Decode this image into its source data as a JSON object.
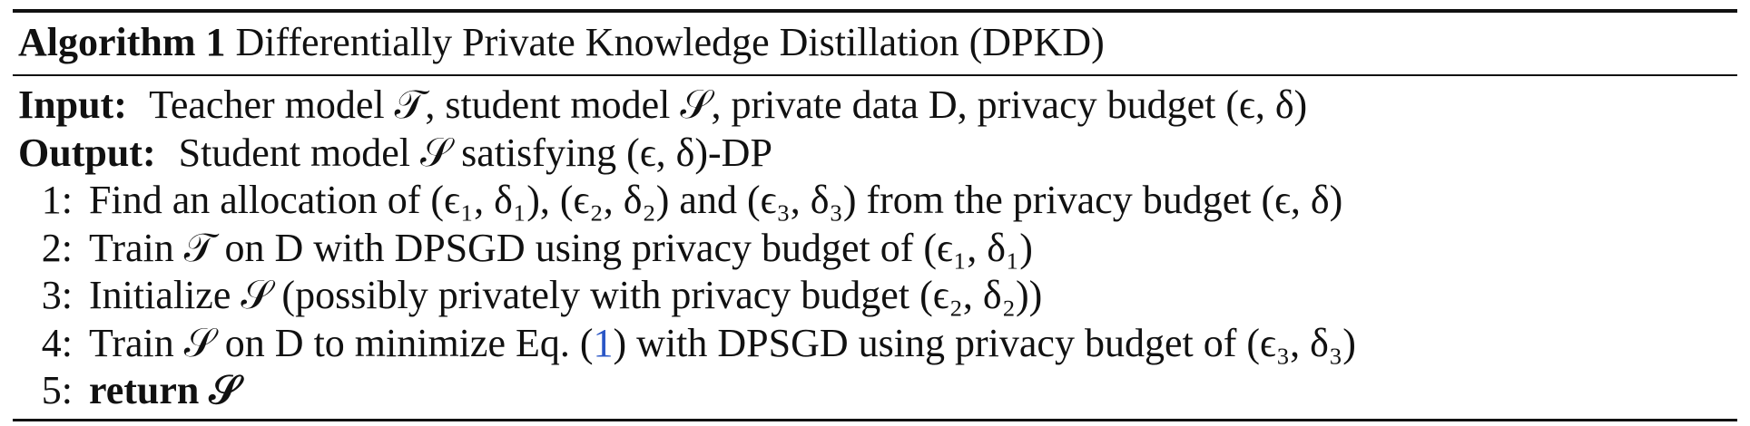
{
  "algorithm": {
    "number_label": "Algorithm 1",
    "title": "Differentially Private Knowledge Distillation (DPKD)",
    "input_label": "Input:",
    "input_text": "Teacher model 𝒯, student model 𝒮, private data D, privacy budget (ϵ, δ)",
    "output_label": "Output:",
    "output_text": "Student model 𝒮 satisfying (ϵ, δ)-DP",
    "steps": [
      {
        "num": "1:",
        "text": "Find an allocation of (ϵ₁, δ₁), (ϵ₂, δ₂) and (ϵ₃, δ₃) from the privacy budget (ϵ, δ)"
      },
      {
        "num": "2:",
        "text": "Train 𝒯 on D with DPSGD using privacy budget of (ϵ₁, δ₁)"
      },
      {
        "num": "3:",
        "text": "Initialize 𝒮 (possibly privately with privacy budget (ϵ₂, δ₂))"
      },
      {
        "num": "4:",
        "text_before_ref": "Train 𝒮 on D to minimize Eq. (",
        "ref": "1",
        "text_after_ref": ") with DPSGD using privacy budget of (ϵ₃, δ₃)"
      },
      {
        "num": "5:",
        "keyword": "return",
        "text": "𝒮"
      }
    ]
  },
  "colors": {
    "text": "#111111",
    "rule": "#111111",
    "reference_link": "#2a56c6"
  }
}
